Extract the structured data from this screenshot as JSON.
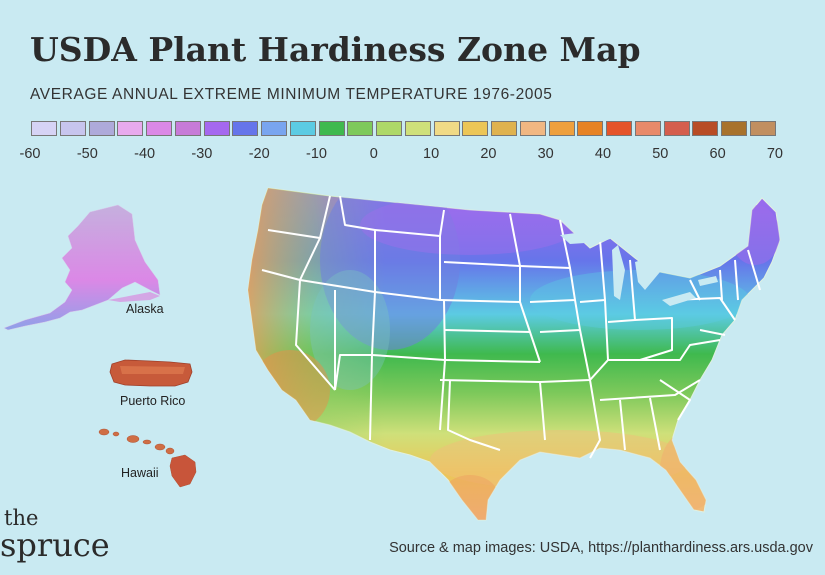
{
  "title": "USDA Plant Hardiness Zone Map",
  "subtitle": "AVERAGE ANNUAL EXTREME MINIMUM TEMPERATURE 1976-2005",
  "legend": {
    "ticks": [
      "-60",
      "-50",
      "-40",
      "-30",
      "-20",
      "-10",
      "0",
      "10",
      "20",
      "30",
      "40",
      "50",
      "60",
      "70"
    ],
    "colors": [
      "#d6d3f5",
      "#c7c5ee",
      "#aeaada",
      "#e8aaee",
      "#db88e6",
      "#c77bd8",
      "#a568ef",
      "#6675ea",
      "#79a5ef",
      "#5ccbe3",
      "#3fb94e",
      "#7ec95b",
      "#aed868",
      "#cfe07a",
      "#f0da86",
      "#ecc657",
      "#dfb24e",
      "#f1b782",
      "#eea03d",
      "#e78324",
      "#e5542a",
      "#e88a6a",
      "#d45e4d",
      "#b84c25",
      "#a8722c",
      "#c18f60"
    ]
  },
  "places": {
    "alaska": "Alaska",
    "puerto_rico": "Puerto Rico",
    "hawaii": "Hawaii"
  },
  "brand": {
    "line1": "the",
    "line2": "spruce"
  },
  "source": "Source & map images: USDA, https://planthardiness.ars.usda.gov"
}
